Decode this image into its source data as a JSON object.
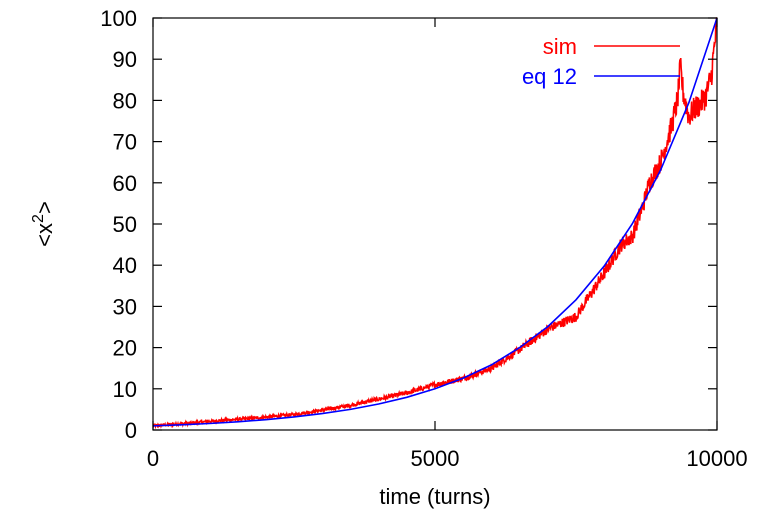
{
  "chart_data": {
    "type": "line",
    "xlabel": "time (turns)",
    "ylabel": "<x²>",
    "xlim": [
      0,
      10000
    ],
    "ylim": [
      0,
      100
    ],
    "x_ticks": [
      0,
      5000,
      10000
    ],
    "y_ticks": [
      0,
      10,
      20,
      30,
      40,
      50,
      60,
      70,
      80,
      90,
      100
    ],
    "grid": false,
    "legend_position": "top-right",
    "series": [
      {
        "name": "sim",
        "color": "#ff0000",
        "x": [
          0,
          500,
          1000,
          1500,
          2000,
          2500,
          3000,
          3500,
          4000,
          4500,
          5000,
          5500,
          6000,
          6500,
          7000,
          7500,
          8000,
          8300,
          8500,
          8700,
          8800,
          9000,
          9200,
          9300,
          9350,
          9400,
          9500,
          9600,
          9700,
          9800,
          9900,
          10000
        ],
        "y": [
          1.0,
          1.5,
          2.1,
          2.6,
          3.1,
          3.8,
          4.8,
          6.0,
          7.5,
          9.0,
          11.0,
          12.5,
          15.0,
          19.5,
          24.5,
          27.5,
          38.0,
          45.0,
          47.0,
          55.0,
          60.0,
          65.0,
          74.0,
          80.0,
          88.0,
          82.0,
          76.0,
          78.0,
          79.0,
          81.0,
          86.0,
          99.0
        ]
      },
      {
        "name": "eq 12",
        "color": "#0000ff",
        "x": [
          0,
          500,
          1000,
          1500,
          2000,
          2500,
          3000,
          3500,
          4000,
          4500,
          5000,
          5500,
          6000,
          6500,
          7000,
          7500,
          8000,
          8500,
          9000,
          9500,
          10000
        ],
        "y": [
          1.0,
          1.26,
          1.58,
          1.99,
          2.51,
          3.16,
          3.98,
          5.01,
          6.31,
          7.94,
          10.0,
          12.6,
          15.8,
          20.0,
          25.1,
          31.6,
          39.8,
          50.1,
          63.1,
          79.4,
          100.0
        ]
      }
    ]
  }
}
